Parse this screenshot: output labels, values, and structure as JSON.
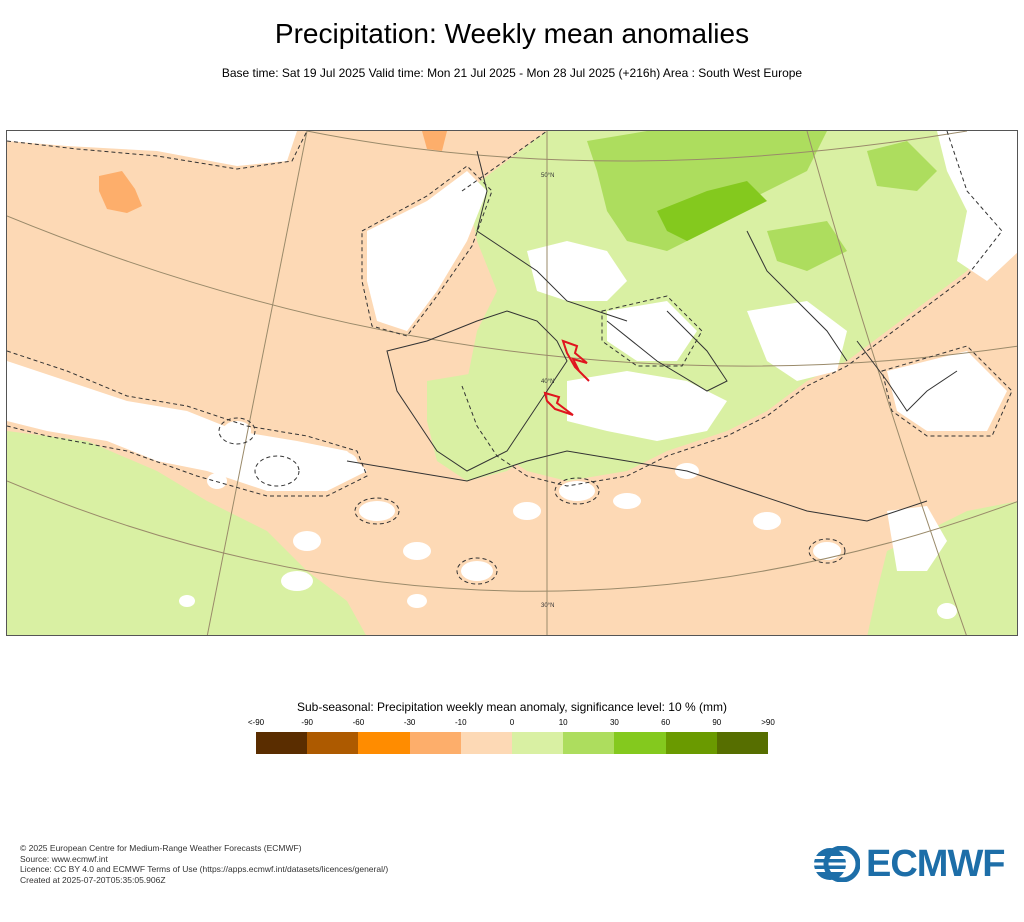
{
  "title": "Precipitation: Weekly mean anomalies",
  "subtitle": "Base time: Sat 19 Jul 2025 Valid time: Mon 21 Jul 2025 - Mon 28 Jul 2025 (+216h) Area : South West Europe",
  "map": {
    "latitude_labels": [
      "50°N",
      "40°N",
      "30°N"
    ],
    "colors": {
      "dry_light": "#fdd9b5",
      "dry_medium": "#fdae6b",
      "neutral": "#ffffff",
      "wet_light": "#d9f0a3",
      "wet_medium": "#addd5e",
      "wet_strong": "#84c91e"
    }
  },
  "legend": {
    "title": "Sub-seasonal: Precipitation weekly mean anomaly, significance level: 10 % (mm)",
    "ticks": [
      "<-90",
      "-90",
      "-60",
      "-30",
      "-10",
      "0",
      "10",
      "30",
      "60",
      "90",
      ">90"
    ],
    "colors": [
      "#5a2d00",
      "#ad5a00",
      "#ff8c00",
      "#fdae6b",
      "#fdd9b5",
      "#d9f0a3",
      "#addd5e",
      "#84c91e",
      "#6a9a00",
      "#566e00"
    ]
  },
  "footer": {
    "copyright": "© 2025 European Centre for Medium-Range Weather Forecasts (ECMWF)",
    "source": "Source: www.ecmwf.int",
    "licence": "Licence: CC BY 4.0 and ECMWF Terms of Use (https://apps.ecmwf.int/datasets/licences/general/)",
    "created": "Created at 2025-07-20T05:35:05.906Z"
  },
  "logo": {
    "text": "ECMWF",
    "color": "#1d6ea8"
  }
}
